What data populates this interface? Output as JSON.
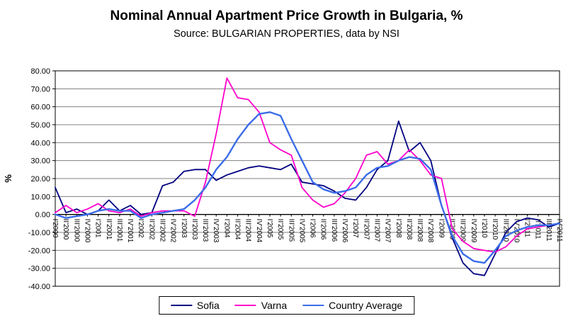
{
  "chart_data": {
    "type": "line",
    "title": "Nominal Annual Apartment Price Growth in Bulgaria, %",
    "subtitle": "Source: BULGARIAN PROPERTIES, data by NSI",
    "ylabel": "%",
    "ylim": [
      -40,
      80
    ],
    "ytick_step": 10,
    "grid": true,
    "legend_position": "bottom",
    "yticks": [
      "80.00",
      "70.00",
      "60.00",
      "50.00",
      "40.00",
      "30.00",
      "20.00",
      "10.00",
      "0.00",
      "-10.00",
      "-20.00",
      "-30.00",
      "-40.00"
    ],
    "categories": [
      "I'2000",
      "II'2000",
      "III'2000",
      "IV'2000",
      "I'2001",
      "II'2001",
      "III'2001",
      "IV'2001",
      "I'2002",
      "II'2002",
      "III'2002",
      "IV'2002",
      "I'2003",
      "II'2003",
      "III'2003",
      "IV'2003",
      "I'2004",
      "II'2004",
      "III'2004",
      "IV'2004",
      "I'2005",
      "II'2005",
      "III'2005",
      "IV'2005",
      "I'2006",
      "II'2006",
      "III'2006",
      "IV'2006",
      "I'2007",
      "II'2007",
      "III'2007",
      "IV'2007",
      "I'2008",
      "II'2008",
      "III'2008",
      "IV'2008",
      "I'2009",
      "II'2009",
      "III'2009",
      "IV'2009",
      "I'2010",
      "II'2010",
      "III'2010",
      "IV'2010",
      "I'2011",
      "II'2011",
      "III'2011",
      "IV'2011"
    ],
    "series": [
      {
        "name": "Sofia",
        "color": "#000080",
        "width": 1.8,
        "values": [
          15,
          1,
          3,
          0,
          2,
          8,
          2,
          5,
          0,
          1,
          16,
          18,
          24,
          25,
          25,
          19,
          22,
          24,
          26,
          27,
          26,
          25,
          28,
          18,
          17,
          16,
          13,
          9,
          8,
          15,
          25,
          30,
          52,
          35,
          40,
          30,
          5,
          -13,
          -27,
          -33,
          -34,
          -22,
          -10,
          -4,
          -2,
          -3,
          -7,
          -5
        ]
      },
      {
        "name": "Varna",
        "color": "#FF00CC",
        "width": 1.8,
        "values": [
          1,
          5,
          1,
          3,
          6,
          2,
          1,
          3,
          -1,
          1,
          2,
          2,
          2,
          -1,
          18,
          45,
          76,
          65,
          64,
          57,
          40,
          36,
          33,
          15,
          8,
          4,
          6,
          12,
          20,
          33,
          35,
          28,
          30,
          36,
          30,
          22,
          20,
          -8,
          -15,
          -19,
          -20,
          -21,
          -18,
          -12,
          -8,
          -7,
          -6,
          -5
        ]
      },
      {
        "name": "Country Average",
        "color": "#3B6CE8",
        "width": 2.4,
        "values": [
          0,
          -2,
          -1,
          0,
          2,
          3,
          2,
          2,
          -2,
          0,
          1,
          2,
          3,
          8,
          15,
          25,
          32,
          42,
          50,
          56,
          57,
          55,
          42,
          30,
          18,
          14,
          12,
          13,
          15,
          22,
          26,
          27,
          30,
          32,
          31,
          25,
          5,
          -12,
          -22,
          -26,
          -27,
          -20,
          -12,
          -9,
          -7,
          -6,
          -6,
          -5
        ]
      }
    ]
  }
}
